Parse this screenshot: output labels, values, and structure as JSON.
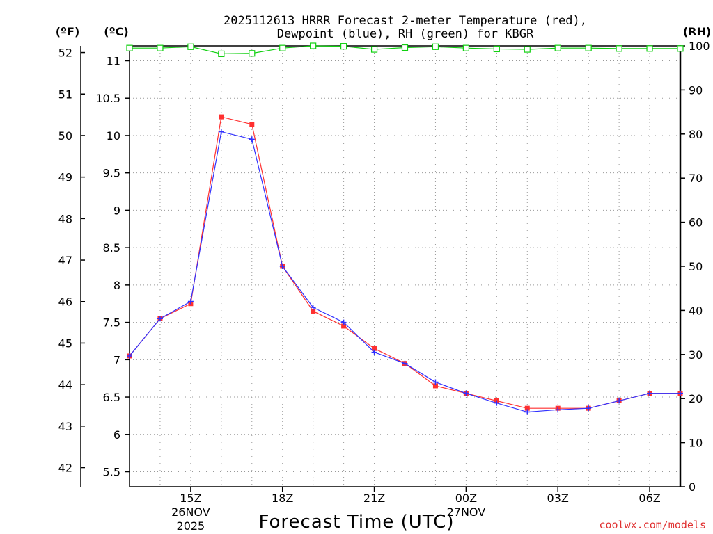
{
  "chart_data": {
    "type": "line",
    "title": "2025112613 HRRR Forecast 2-meter Temperature (red),",
    "subtitle": "Dewpoint (blue), RH (green) for KBGR",
    "units": {
      "fahrenheit": "(ºF)",
      "celsius": "(ºC)",
      "rh": "(RH)"
    },
    "xlabel": "Forecast Time (UTC)",
    "credit": "coolwx.com/models",
    "x_hours": [
      13,
      14,
      15,
      16,
      17,
      18,
      19,
      20,
      21,
      22,
      23,
      24,
      25,
      26,
      27,
      28,
      29,
      30,
      31
    ],
    "xlim": [
      13,
      31
    ],
    "x_ticks": [
      {
        "hour": 15,
        "label": "15Z",
        "line2": "26NOV",
        "line3": "2025"
      },
      {
        "hour": 18,
        "label": "18Z"
      },
      {
        "hour": 21,
        "label": "21Z"
      },
      {
        "hour": 24,
        "label": "00Z",
        "line2": "27NOV"
      },
      {
        "hour": 27,
        "label": "03Z"
      },
      {
        "hour": 30,
        "label": "06Z"
      }
    ],
    "y_celsius_lim": [
      5.3,
      11.2
    ],
    "y_celsius_ticks": [
      5.5,
      6,
      6.5,
      7,
      7.5,
      8,
      8.5,
      9,
      9.5,
      10,
      10.5,
      11
    ],
    "y_celsius_tick_labels": [
      "5.5",
      "6",
      "6.5",
      "7",
      "7.5",
      "8",
      "8.5",
      "9",
      "9.5",
      "10",
      "10.5",
      "11"
    ],
    "y_fahrenheit_ticks": [
      42,
      43,
      44,
      45,
      46,
      47,
      48,
      49,
      50,
      51,
      52
    ],
    "y_fahrenheit_tick_labels": [
      "42",
      "43",
      "44",
      "45",
      "46",
      "47",
      "48",
      "49",
      "50",
      "51",
      "52"
    ],
    "y_rh_lim": [
      0,
      100
    ],
    "y_rh_ticks": [
      0,
      10,
      20,
      30,
      40,
      50,
      60,
      70,
      80,
      90,
      100
    ],
    "y_rh_tick_labels": [
      "0",
      "10",
      "20",
      "30",
      "40",
      "50",
      "60",
      "70",
      "80",
      "90",
      "100"
    ],
    "series": [
      {
        "name": "Temperature",
        "unit": "C",
        "color": "#ff3030",
        "marker": "filled-square",
        "values": [
          7.05,
          7.55,
          7.75,
          10.25,
          10.15,
          8.25,
          7.65,
          7.45,
          7.15,
          6.95,
          6.65,
          6.55,
          6.45,
          6.35,
          6.35,
          6.35,
          6.45,
          6.55,
          6.55
        ]
      },
      {
        "name": "Dewpoint",
        "unit": "C",
        "color": "#3030ff",
        "marker": "plus",
        "values": [
          7.05,
          7.55,
          7.78,
          10.05,
          9.95,
          8.25,
          7.7,
          7.5,
          7.1,
          6.95,
          6.7,
          6.55,
          6.42,
          6.3,
          6.33,
          6.35,
          6.45,
          6.55,
          6.55
        ]
      },
      {
        "name": "RH",
        "unit": "%",
        "color": "#10d010",
        "marker": "open-square",
        "values": [
          99.5,
          99.5,
          99.8,
          98.2,
          98.3,
          99.5,
          100,
          99.9,
          99.2,
          99.6,
          99.8,
          99.5,
          99.3,
          99.2,
          99.5,
          99.5,
          99.4,
          99.4,
          99.4
        ]
      }
    ]
  }
}
